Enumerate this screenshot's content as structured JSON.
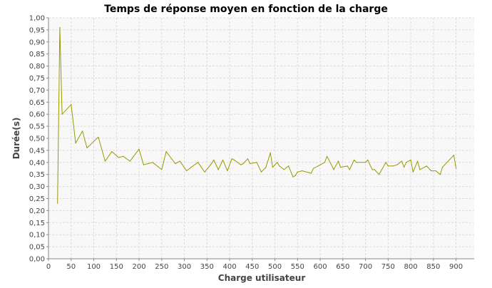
{
  "chart_data": {
    "type": "line",
    "title": "Temps de réponse moyen en fonction de la charge",
    "xlabel": "Charge utilisateur",
    "ylabel": "Durée(s)",
    "xlim": [
      0,
      940
    ],
    "ylim": [
      0,
      1.0
    ],
    "x_ticks": [
      "0",
      "50",
      "100",
      "150",
      "200",
      "250",
      "300",
      "350",
      "400",
      "450",
      "500",
      "550",
      "600",
      "650",
      "700",
      "750",
      "800",
      "850",
      "900"
    ],
    "x_tick_values": [
      0,
      50,
      100,
      150,
      200,
      250,
      300,
      350,
      400,
      450,
      500,
      550,
      600,
      650,
      700,
      750,
      800,
      850,
      900
    ],
    "y_ticks": [
      "0,00",
      "0,05",
      "0,10",
      "0,15",
      "0,20",
      "0,25",
      "0,30",
      "0,35",
      "0,40",
      "0,45",
      "0,50",
      "0,55",
      "0,60",
      "0,65",
      "0,70",
      "0,75",
      "0,80",
      "0,85",
      "0,90",
      "0,95",
      "1,00"
    ],
    "y_tick_values": [
      0,
      0.05,
      0.1,
      0.15,
      0.2,
      0.25,
      0.3,
      0.35,
      0.4,
      0.45,
      0.5,
      0.55,
      0.6,
      0.65,
      0.7,
      0.75,
      0.8,
      0.85,
      0.9,
      0.95,
      1.0
    ],
    "grid": true,
    "colors": {
      "series": "#999900",
      "plot_background": "#f8f8f8",
      "grid": "#dcdcdc"
    },
    "series": [
      {
        "x": [
          20,
          25,
          30,
          50,
          60,
          75,
          85,
          110,
          125,
          140,
          155,
          165,
          180,
          200,
          210,
          220,
          230,
          250,
          260,
          280,
          290,
          305,
          315,
          330,
          345,
          360,
          365,
          375,
          385,
          395,
          405,
          410,
          425,
          430,
          440,
          445,
          460,
          470,
          480,
          490,
          495,
          505,
          510,
          520,
          530,
          540,
          545,
          550,
          560,
          580,
          585,
          600,
          610,
          615,
          630,
          640,
          645,
          660,
          665,
          675,
          680,
          700,
          705,
          715,
          720,
          730,
          745,
          750,
          760,
          770,
          780,
          785,
          790,
          800,
          805,
          815,
          820,
          835,
          845,
          855,
          865,
          870,
          875,
          895,
          900
        ],
        "y": [
          0.23,
          0.96,
          0.6,
          0.64,
          0.48,
          0.53,
          0.46,
          0.505,
          0.405,
          0.445,
          0.42,
          0.425,
          0.405,
          0.455,
          0.39,
          0.395,
          0.4,
          0.37,
          0.445,
          0.395,
          0.405,
          0.365,
          0.38,
          0.4,
          0.36,
          0.395,
          0.41,
          0.37,
          0.41,
          0.365,
          0.415,
          0.41,
          0.39,
          0.395,
          0.415,
          0.395,
          0.4,
          0.36,
          0.38,
          0.44,
          0.38,
          0.4,
          0.385,
          0.37,
          0.385,
          0.34,
          0.345,
          0.36,
          0.365,
          0.355,
          0.375,
          0.39,
          0.4,
          0.425,
          0.37,
          0.405,
          0.38,
          0.385,
          0.37,
          0.41,
          0.4,
          0.4,
          0.41,
          0.37,
          0.37,
          0.35,
          0.4,
          0.385,
          0.385,
          0.39,
          0.405,
          0.38,
          0.4,
          0.41,
          0.36,
          0.405,
          0.37,
          0.385,
          0.365,
          0.365,
          0.35,
          0.38,
          0.39,
          0.43,
          0.375
        ]
      }
    ]
  }
}
